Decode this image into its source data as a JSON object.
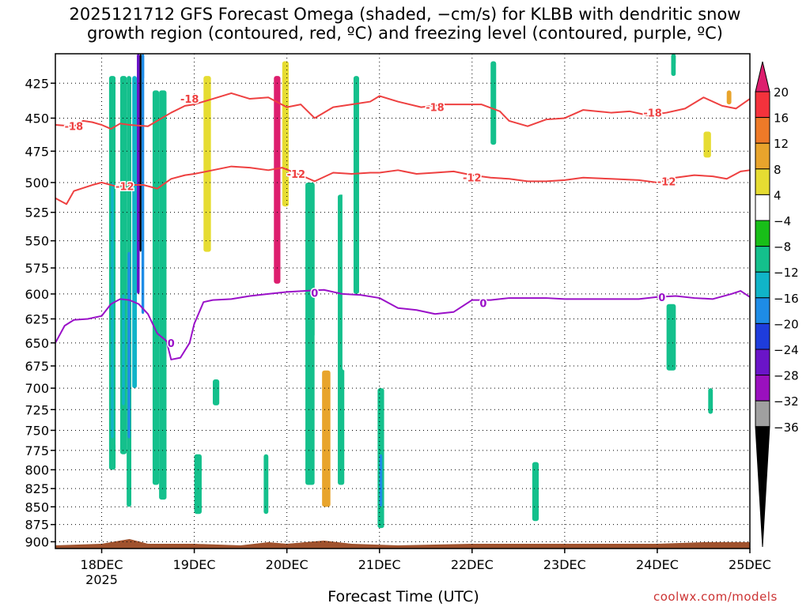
{
  "title": {
    "line1": "2025121712 GFS Forecast Omega (shaded, −cm/s) for KLBB with dendritic snow",
    "line2": "growth region (contoured, red, ºC) and freezing level (contoured, purple, ºC)"
  },
  "xlabel": "Forecast Time (UTC)",
  "credit": "coolwx.com/models",
  "chart_data": {
    "type": "heatmap",
    "title": "2025121712 GFS Forecast Omega (shaded, −cm/s) for KLBB with dendritic snow growth region (contoured, red, ºC) and freezing level (contoured, purple, ºC)",
    "xlabel": "Forecast Time (UTC)",
    "ylabel": "",
    "x_ticks": [
      "18DEC",
      "19DEC",
      "20DEC",
      "21DEC",
      "22DEC",
      "23DEC",
      "24DEC",
      "25DEC"
    ],
    "x_year_label": "2025",
    "xlim_days": [
      17.5,
      25.0
    ],
    "y_ticks": [
      425,
      450,
      475,
      500,
      525,
      550,
      575,
      600,
      625,
      650,
      675,
      700,
      725,
      750,
      775,
      800,
      825,
      850,
      875,
      900
    ],
    "ylim": [
      405,
      910
    ],
    "y_reversed": true,
    "y_scale": "log",
    "grid": "dotted",
    "colorbar": {
      "ticks": [
        20,
        16,
        12,
        8,
        4,
        -4,
        -8,
        -12,
        -16,
        -20,
        -24,
        -28,
        -32,
        -36
      ],
      "colors": [
        "#dd1e6e",
        "#f4323c",
        "#ee7a28",
        "#e8a42c",
        "#e6dc32",
        "#ffffff",
        "#18be18",
        "#14c08c",
        "#10b4c8",
        "#1e8ce6",
        "#1e3cdc",
        "#6a14c8",
        "#9a10be",
        "#a0a0a0",
        "#000000"
      ]
    },
    "contours": {
      "dgz_red": [
        {
          "label": "-18",
          "x": [
            17.5,
            17.7,
            17.8,
            17.9,
            18.0,
            18.1,
            18.2,
            18.3,
            18.5,
            18.6,
            18.75,
            18.9,
            19.0,
            19.2,
            19.4,
            19.6,
            19.8,
            20.0,
            20.15,
            20.3,
            20.5,
            20.7,
            20.9,
            21.0,
            21.2,
            21.45,
            21.7,
            21.9,
            22.1,
            22.3,
            22.4,
            22.6,
            22.8,
            23.0,
            23.2,
            23.5,
            23.7,
            23.9,
            24.1,
            24.3,
            24.5,
            24.7,
            24.85,
            25.0
          ],
          "y": [
            455,
            456,
            452,
            453,
            455,
            458,
            454,
            455,
            456,
            452,
            446,
            441,
            440,
            436,
            432,
            436,
            435,
            442,
            440,
            450,
            442,
            440,
            438,
            434,
            438,
            442,
            440,
            440,
            440,
            445,
            452,
            456,
            451,
            450,
            444,
            446,
            445,
            448,
            446,
            443,
            435,
            441,
            443,
            436
          ]
        },
        {
          "label": "-12",
          "x": [
            17.5,
            17.62,
            17.7,
            17.9,
            18.0,
            18.15,
            18.3,
            18.45,
            18.6,
            18.75,
            18.9,
            19.0,
            19.2,
            19.4,
            19.6,
            19.8,
            19.95,
            20.15,
            20.3,
            20.5,
            20.7,
            20.9,
            21.0,
            21.2,
            21.4,
            21.6,
            21.8,
            22.0,
            22.2,
            22.4,
            22.6,
            22.8,
            23.0,
            23.2,
            23.5,
            23.8,
            24.0,
            24.2,
            24.4,
            24.6,
            24.75,
            24.9,
            25.0
          ],
          "y": [
            513,
            518,
            507,
            502,
            500,
            503,
            502,
            502,
            505,
            497,
            494,
            493,
            490,
            487,
            488,
            490,
            488,
            494,
            499,
            492,
            493,
            492,
            492,
            490,
            493,
            492,
            491,
            494,
            496,
            497,
            499,
            499,
            498,
            496,
            497,
            498,
            500,
            496,
            494,
            495,
            497,
            491,
            490
          ]
        }
      ],
      "freezing_purple": [
        {
          "label": "0",
          "x": [
            17.5,
            17.6,
            17.7,
            17.85,
            18.0,
            18.1,
            18.2,
            18.3,
            18.4,
            18.5,
            18.6,
            18.7,
            18.75,
            18.85,
            18.95,
            19.0,
            19.1,
            19.2,
            19.4,
            19.6,
            19.8,
            20.0,
            20.2,
            20.4,
            20.6,
            20.8,
            21.0,
            21.2,
            21.4,
            21.6,
            21.8,
            22.0,
            22.2,
            22.4,
            22.6,
            22.8,
            23.0,
            23.2,
            23.5,
            23.8,
            24.0,
            24.2,
            24.4,
            24.6,
            24.8,
            24.9,
            25.0
          ],
          "y": [
            650,
            632,
            626,
            625,
            622,
            610,
            605,
            606,
            610,
            620,
            640,
            648,
            668,
            666,
            650,
            630,
            608,
            606,
            605,
            602,
            600,
            598,
            597,
            596,
            600,
            601,
            604,
            614,
            616,
            620,
            618,
            606,
            606,
            604,
            604,
            604,
            605,
            605,
            605,
            605,
            603,
            602,
            604,
            605,
            600,
            597,
            603
          ]
        }
      ]
    },
    "omega_cells": [
      {
        "x": [
          17.68,
          17.72
        ],
        "y": [
          600,
          700
        ],
        "v": 4
      },
      {
        "x": [
          17.95,
          18.02
        ],
        "y": [
          420,
          800
        ],
        "v": 4
      },
      {
        "x": [
          18.03,
          18.08
        ],
        "y": [
          420,
          880
        ],
        "v": 4
      },
      {
        "x": [
          18.08,
          18.15
        ],
        "y": [
          420,
          800
        ],
        "v": -8
      },
      {
        "x": [
          18.1,
          18.13
        ],
        "y": [
          500,
          760
        ],
        "v": -12
      },
      {
        "x": [
          18.15,
          18.2
        ],
        "y": [
          420,
          770
        ],
        "v": 4
      },
      {
        "x": [
          18.2,
          18.27
        ],
        "y": [
          420,
          780
        ],
        "v": -8
      },
      {
        "x": [
          18.22,
          18.25
        ],
        "y": [
          600,
          720
        ],
        "v": -12
      },
      {
        "x": [
          18.27,
          18.32
        ],
        "y": [
          420,
          850
        ],
        "v": -8
      },
      {
        "x": [
          18.28,
          18.31
        ],
        "y": [
          560,
          760
        ],
        "v": -16
      },
      {
        "x": [
          18.33,
          18.38
        ],
        "y": [
          420,
          700
        ],
        "v": -12
      },
      {
        "x": [
          18.38,
          18.41
        ],
        "y": [
          405,
          600
        ],
        "v": -24
      },
      {
        "x": [
          18.41,
          18.43
        ],
        "y": [
          405,
          560
        ],
        "v": -36
      },
      {
        "x": [
          18.43,
          18.46
        ],
        "y": [
          405,
          620
        ],
        "v": -16
      },
      {
        "x": [
          18.46,
          18.52
        ],
        "y": [
          420,
          790
        ],
        "v": 4
      },
      {
        "x": [
          18.55,
          18.62
        ],
        "y": [
          430,
          820
        ],
        "v": -8
      },
      {
        "x": [
          18.62,
          18.7
        ],
        "y": [
          430,
          840
        ],
        "v": -8
      },
      {
        "x": [
          18.72,
          18.78
        ],
        "y": [
          430,
          830
        ],
        "v": 4
      },
      {
        "x": [
          18.9,
          18.96
        ],
        "y": [
          420,
          700
        ],
        "v": 4
      },
      {
        "x": [
          19.0,
          19.08
        ],
        "y": [
          780,
          860
        ],
        "v": -8
      },
      {
        "x": [
          19.1,
          19.18
        ],
        "y": [
          420,
          560
        ],
        "v": 8
      },
      {
        "x": [
          19.2,
          19.27
        ],
        "y": [
          690,
          720
        ],
        "v": -8
      },
      {
        "x": [
          19.35,
          19.45
        ],
        "y": [
          430,
          600
        ],
        "v": 4
      },
      {
        "x": [
          19.75,
          19.8
        ],
        "y": [
          780,
          860
        ],
        "v": -8
      },
      {
        "x": [
          19.83,
          19.95
        ],
        "y": [
          410,
          860
        ],
        "v": 4
      },
      {
        "x": [
          19.86,
          19.93
        ],
        "y": [
          420,
          590
        ],
        "v": 20
      },
      {
        "x": [
          19.95,
          20.02
        ],
        "y": [
          410,
          520
        ],
        "v": 8
      },
      {
        "x": [
          20.1,
          20.22
        ],
        "y": [
          420,
          560
        ],
        "v": 4
      },
      {
        "x": [
          20.2,
          20.3
        ],
        "y": [
          500,
          820
        ],
        "v": -8
      },
      {
        "x": [
          20.3,
          20.5
        ],
        "y": [
          640,
          880
        ],
        "v": 4
      },
      {
        "x": [
          20.38,
          20.47
        ],
        "y": [
          680,
          850
        ],
        "v": 12
      },
      {
        "x": [
          20.55,
          20.62
        ],
        "y": [
          510,
          820
        ],
        "v": -8
      },
      {
        "x": [
          20.6,
          20.7
        ],
        "y": [
          480,
          680
        ],
        "v": 4
      },
      {
        "x": [
          20.72,
          20.78
        ],
        "y": [
          420,
          600
        ],
        "v": -8
      },
      {
        "x": [
          20.78,
          20.82
        ],
        "y": [
          430,
          520
        ],
        "v": 4
      },
      {
        "x": [
          20.95,
          21.05
        ],
        "y": [
          430,
          620
        ],
        "v": 4
      },
      {
        "x": [
          20.98,
          21.05
        ],
        "y": [
          700,
          880
        ],
        "v": -8
      },
      {
        "x": [
          21.0,
          21.03
        ],
        "y": [
          780,
          850
        ],
        "v": -16
      },
      {
        "x": [
          21.15,
          21.22
        ],
        "y": [
          430,
          600
        ],
        "v": 4
      },
      {
        "x": [
          22.2,
          22.26
        ],
        "y": [
          410,
          470
        ],
        "v": -8
      },
      {
        "x": [
          22.65,
          22.72
        ],
        "y": [
          560,
          690
        ],
        "v": 4
      },
      {
        "x": [
          22.65,
          22.72
        ],
        "y": [
          790,
          870
        ],
        "v": -8
      },
      {
        "x": [
          22.92,
          22.98
        ],
        "y": [
          840,
          870
        ],
        "v": 4
      },
      {
        "x": [
          23.5,
          23.55
        ],
        "y": [
          730,
          790
        ],
        "v": 4
      },
      {
        "x": [
          23.65,
          23.7
        ],
        "y": [
          720,
          800
        ],
        "v": 4
      },
      {
        "x": [
          23.94,
          23.98
        ],
        "y": [
          860,
          870
        ],
        "v": 4
      },
      {
        "x": [
          24.15,
          24.2
        ],
        "y": [
          405,
          420
        ],
        "v": -8
      },
      {
        "x": [
          24.1,
          24.2
        ],
        "y": [
          610,
          680
        ],
        "v": -8
      },
      {
        "x": [
          24.2,
          24.3
        ],
        "y": [
          410,
          500
        ],
        "v": 4
      },
      {
        "x": [
          24.45,
          24.6
        ],
        "y": [
          420,
          610
        ],
        "v": 4
      },
      {
        "x": [
          24.5,
          24.58
        ],
        "y": [
          460,
          480
        ],
        "v": 8
      },
      {
        "x": [
          24.55,
          24.6
        ],
        "y": [
          700,
          730
        ],
        "v": -8
      },
      {
        "x": [
          24.7,
          24.76
        ],
        "y": [
          410,
          460
        ],
        "v": 4
      },
      {
        "x": [
          24.75,
          24.8
        ],
        "y": [
          430,
          440
        ],
        "v": 12
      },
      {
        "x": [
          24.92,
          24.98
        ],
        "y": [
          740,
          830
        ],
        "v": 4
      }
    ]
  }
}
